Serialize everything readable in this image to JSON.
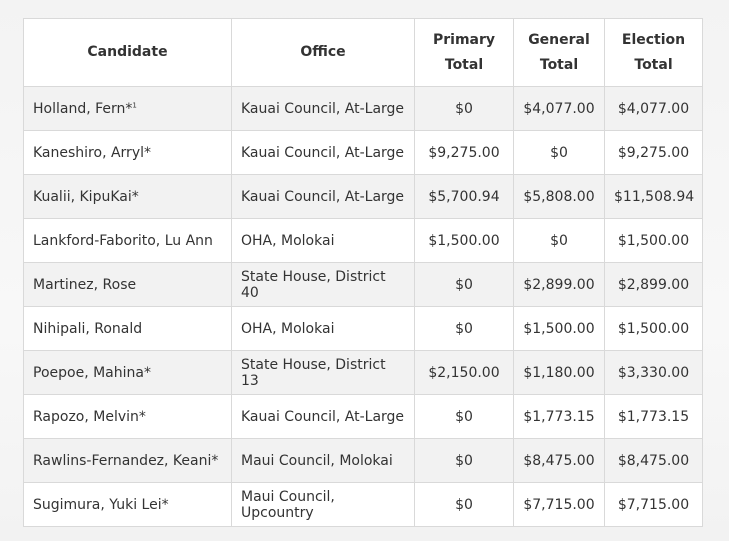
{
  "table": {
    "headers": [
      {
        "lines": [
          "Candidate"
        ]
      },
      {
        "lines": [
          "Office"
        ]
      },
      {
        "lines": [
          "Primary",
          "Total"
        ]
      },
      {
        "lines": [
          "General",
          "Total"
        ]
      },
      {
        "lines": [
          "Election",
          "Total"
        ]
      }
    ],
    "rows": [
      {
        "candidate": "Holland, Fern*",
        "footnote": "1",
        "office": "Kauai Council, At-Large",
        "primary": "$0",
        "general": "$4,077.00",
        "election": "$4,077.00"
      },
      {
        "candidate": "Kaneshiro, Arryl*",
        "footnote": "",
        "office": "Kauai Council, At-Large",
        "primary": "$9,275.00",
        "general": "$0",
        "election": "$9,275.00"
      },
      {
        "candidate": "Kualii, KipuKai*",
        "footnote": "",
        "office": "Kauai Council, At-Large",
        "primary": "$5,700.94",
        "general": "$5,808.00",
        "election": "$11,508.94"
      },
      {
        "candidate": "Lankford-Faborito, Lu Ann",
        "footnote": "",
        "office": "OHA, Molokai",
        "primary": "$1,500.00",
        "general": "$0",
        "election": "$1,500.00"
      },
      {
        "candidate": "Martinez, Rose",
        "footnote": "",
        "office": "State House, District 40",
        "primary": "$0",
        "general": "$2,899.00",
        "election": "$2,899.00"
      },
      {
        "candidate": "Nihipali, Ronald",
        "footnote": "",
        "office": "OHA, Molokai",
        "primary": "$0",
        "general": "$1,500.00",
        "election": "$1,500.00"
      },
      {
        "candidate": "Poepoe, Mahina*",
        "footnote": "",
        "office": "State House, District 13",
        "primary": "$2,150.00",
        "general": "$1,180.00",
        "election": "$3,330.00"
      },
      {
        "candidate": "Rapozo, Melvin*",
        "footnote": "",
        "office": "Kauai Council, At-Large",
        "primary": "$0",
        "general": "$1,773.15",
        "election": "$1,773.15"
      },
      {
        "candidate": "Rawlins-Fernandez, Keani*",
        "footnote": "",
        "office": "Maui Council, Molokai",
        "primary": "$0",
        "general": "$8,475.00",
        "election": "$8,475.00"
      },
      {
        "candidate": "Sugimura, Yuki Lei*",
        "footnote": "",
        "office": "Maui Council, Upcountry",
        "primary": "$0",
        "general": "$7,715.00",
        "election": "$7,715.00"
      }
    ]
  }
}
